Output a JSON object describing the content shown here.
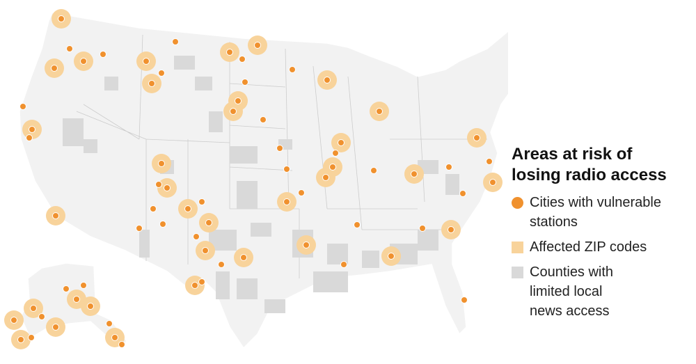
{
  "legend": {
    "title": "Areas at risk of losing radio access",
    "items": [
      {
        "label": "Cities with vulnerable stations"
      },
      {
        "label": "Affected ZIP codes"
      },
      {
        "label": "Counties with limited local news access"
      }
    ]
  }
}
